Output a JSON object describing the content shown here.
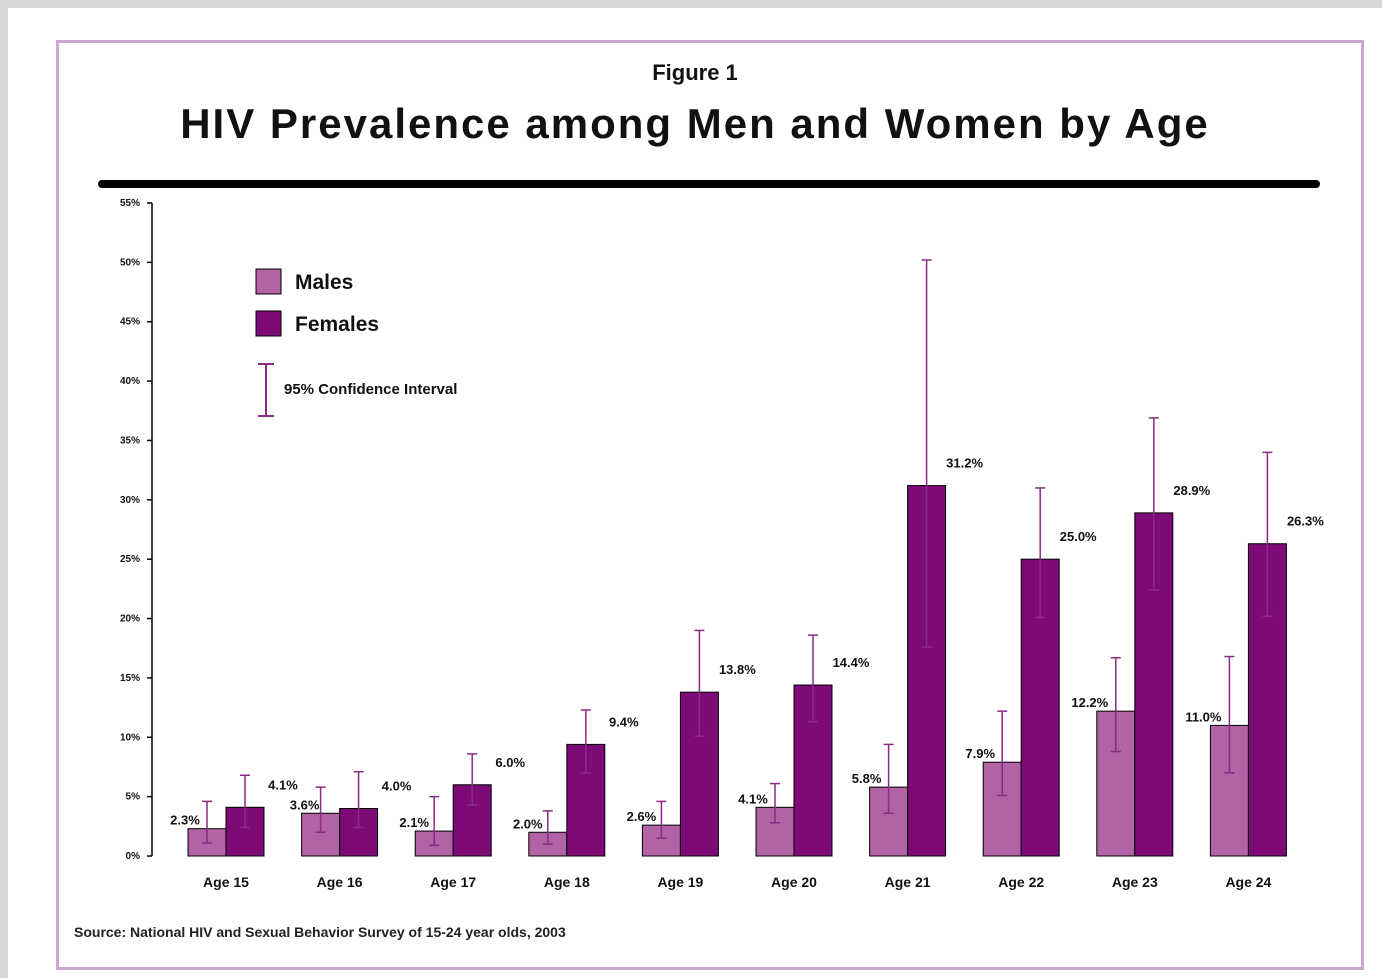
{
  "figure_label": "Figure 1",
  "title": "HIV Prevalence among Men and Women by Age",
  "source": "Source: National HIV and Sexual Behavior Survey of 15-24 year olds, 2003",
  "colors": {
    "males": "#b163a6",
    "females": "#7e0a78",
    "error_bar": "#8a2a86",
    "frame": "#cfa6cf"
  },
  "legend": {
    "males": "Males",
    "females": "Females",
    "ci": "95% Confidence Interval"
  },
  "chart_data": {
    "type": "bar",
    "categories": [
      "Age 15",
      "Age 16",
      "Age 17",
      "Age 18",
      "Age 19",
      "Age 20",
      "Age 21",
      "Age 22",
      "Age 23",
      "Age 24"
    ],
    "ylim": [
      0,
      55
    ],
    "yticks": [
      "0%",
      "5%",
      "10%",
      "15%",
      "20%",
      "25%",
      "30%",
      "35%",
      "40%",
      "45%",
      "50%",
      "55%"
    ],
    "series": [
      {
        "name": "Males",
        "values": [
          2.3,
          3.6,
          2.1,
          2.0,
          2.6,
          4.1,
          5.8,
          7.9,
          12.2,
          11.0
        ],
        "labels": [
          "2.3%",
          "3.6%",
          "2.1%",
          "2.0%",
          "2.6%",
          "4.1%",
          "5.8%",
          "7.9%",
          "12.2%",
          "11.0%"
        ],
        "ci_low": [
          1.1,
          2.0,
          0.9,
          1.0,
          1.5,
          2.8,
          3.6,
          5.1,
          8.8,
          7.0
        ],
        "ci_high": [
          4.6,
          5.8,
          5.0,
          3.8,
          4.6,
          6.1,
          9.4,
          12.2,
          16.7,
          16.8
        ]
      },
      {
        "name": "Females",
        "values": [
          4.1,
          4.0,
          6.0,
          9.4,
          13.8,
          14.4,
          31.2,
          25.0,
          28.9,
          26.3
        ],
        "labels": [
          "4.1%",
          "4.0%",
          "6.0%",
          "9.4%",
          "13.8%",
          "14.4%",
          "31.2%",
          "25.0%",
          "28.9%",
          "26.3%"
        ],
        "ci_low": [
          2.4,
          2.4,
          4.3,
          7.0,
          10.1,
          11.3,
          17.6,
          20.1,
          22.4,
          20.2
        ],
        "ci_high": [
          6.8,
          7.1,
          8.6,
          12.3,
          19.0,
          18.6,
          50.2,
          31.0,
          36.9,
          34.0
        ]
      }
    ],
    "legend_position": "top-left",
    "grid": false
  }
}
